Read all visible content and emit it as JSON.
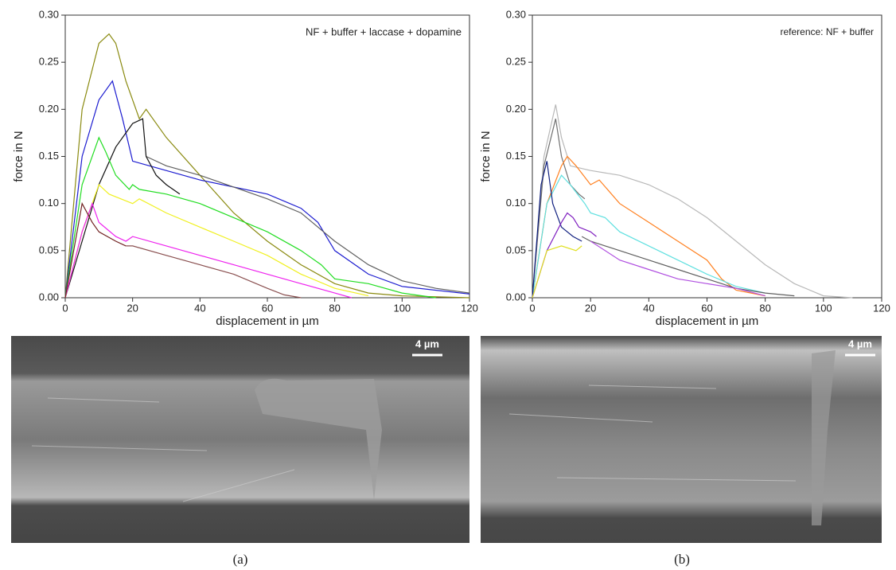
{
  "chart_data": [
    {
      "type": "line",
      "xlabel": "displacement in µm",
      "ylabel": "force in N",
      "annotation": "NF + buffer + laccase + dopamine",
      "xlim": [
        0,
        120
      ],
      "xticks": [
        0,
        20,
        40,
        60,
        80,
        100,
        120
      ],
      "ylim": [
        0,
        0.3
      ],
      "yticks": [
        {
          "value": 0,
          "label": "0.00"
        },
        {
          "value": 0.05,
          "label": "0.05"
        },
        {
          "value": 0.1,
          "label": "0.10"
        },
        {
          "value": 0.15,
          "label": "0.15"
        },
        {
          "value": 0.2,
          "label": "0.20"
        },
        {
          "value": 0.25,
          "label": "0.25"
        },
        {
          "value": 0.3,
          "label": "0.30"
        }
      ],
      "series": [
        {
          "color": "#8a8a10",
          "x": [
            0,
            5,
            10,
            13,
            15,
            18,
            22,
            24,
            30,
            40,
            50,
            60,
            70,
            80,
            90,
            100,
            120
          ],
          "values": [
            0,
            0.2,
            0.27,
            0.28,
            0.27,
            0.23,
            0.19,
            0.2,
            0.17,
            0.13,
            0.09,
            0.06,
            0.035,
            0.015,
            0.005,
            0.002,
            0
          ]
        },
        {
          "color": "#1c1cd0",
          "x": [
            0,
            5,
            10,
            14,
            17,
            20,
            25,
            40,
            60,
            70,
            75,
            80,
            90,
            100,
            120
          ],
          "values": [
            0,
            0.15,
            0.21,
            0.23,
            0.19,
            0.145,
            0.14,
            0.125,
            0.11,
            0.095,
            0.08,
            0.05,
            0.025,
            0.012,
            0.004
          ]
        },
        {
          "color": "#606060",
          "x": [
            24,
            30,
            40,
            60,
            70,
            80,
            90,
            100,
            110,
            120
          ],
          "values": [
            0.15,
            0.14,
            0.13,
            0.105,
            0.09,
            0.06,
            0.035,
            0.018,
            0.01,
            0.005
          ]
        },
        {
          "color": "#111111",
          "x": [
            0,
            5,
            10,
            15,
            20,
            23,
            24,
            27,
            30,
            34
          ],
          "values": [
            0,
            0.06,
            0.12,
            0.16,
            0.185,
            0.19,
            0.15,
            0.13,
            0.12,
            0.11
          ]
        },
        {
          "color": "#22dd22",
          "x": [
            0,
            5,
            10,
            12,
            15,
            19,
            20,
            22,
            30,
            40,
            50,
            60,
            70,
            76,
            80,
            90,
            100,
            110
          ],
          "values": [
            0,
            0.12,
            0.17,
            0.155,
            0.13,
            0.115,
            0.12,
            0.115,
            0.11,
            0.1,
            0.085,
            0.07,
            0.05,
            0.035,
            0.02,
            0.015,
            0.005,
            0
          ]
        },
        {
          "color": "#f0f020",
          "x": [
            0,
            5,
            10,
            13,
            20,
            22,
            30,
            40,
            50,
            60,
            70,
            80,
            90
          ],
          "values": [
            0,
            0.07,
            0.12,
            0.11,
            0.1,
            0.105,
            0.09,
            0.075,
            0.06,
            0.045,
            0.025,
            0.01,
            0.002
          ]
        },
        {
          "color": "#8a5050",
          "x": [
            18,
            20,
            30,
            40,
            50,
            60,
            65,
            70
          ],
          "values": [
            0.055,
            0.055,
            0.045,
            0.035,
            0.025,
            0.01,
            0.003,
            0
          ]
        },
        {
          "color": "#ee22ee",
          "x": [
            0,
            5,
            8,
            10,
            15,
            18,
            20,
            30,
            40,
            50,
            60,
            70,
            80,
            85
          ],
          "values": [
            0,
            0.07,
            0.1,
            0.08,
            0.065,
            0.06,
            0.065,
            0.055,
            0.045,
            0.035,
            0.025,
            0.015,
            0.005,
            0
          ]
        },
        {
          "color": "#702020",
          "x": [
            0,
            5,
            8,
            10,
            15,
            18
          ],
          "values": [
            0,
            0.1,
            0.08,
            0.07,
            0.06,
            0.055
          ]
        }
      ]
    },
    {
      "type": "line",
      "xlabel": "displacement in µm",
      "ylabel": "force in N",
      "annotation": "reference: NF + buffer",
      "xlim": [
        0,
        120
      ],
      "xticks": [
        0,
        20,
        40,
        60,
        80,
        100,
        120
      ],
      "ylim": [
        0,
        0.3
      ],
      "yticks": [
        {
          "value": 0,
          "label": "0.00"
        },
        {
          "value": 0.05,
          "label": "0.05"
        },
        {
          "value": 0.1,
          "label": "0.10"
        },
        {
          "value": 0.15,
          "label": "0.15"
        },
        {
          "value": 0.2,
          "label": "0.20"
        },
        {
          "value": 0.25,
          "label": "0.25"
        },
        {
          "value": 0.3,
          "label": "0.30"
        }
      ],
      "series": [
        {
          "color": "#b8b8b8",
          "x": [
            0,
            4,
            8,
            10,
            13,
            20,
            30,
            40,
            50,
            60,
            70,
            80,
            90,
            100,
            110
          ],
          "values": [
            0,
            0.15,
            0.205,
            0.17,
            0.14,
            0.135,
            0.13,
            0.12,
            0.105,
            0.085,
            0.06,
            0.035,
            0.015,
            0.002,
            0
          ]
        },
        {
          "color": "#707070",
          "x": [
            0,
            4,
            8,
            10,
            13,
            16,
            18
          ],
          "values": [
            0,
            0.14,
            0.19,
            0.15,
            0.12,
            0.11,
            0.105
          ]
        },
        {
          "color": "#ff8020",
          "x": [
            0,
            5,
            10,
            12,
            15,
            20,
            23,
            30,
            40,
            50,
            60,
            65,
            70,
            80
          ],
          "values": [
            0,
            0.1,
            0.14,
            0.15,
            0.14,
            0.12,
            0.125,
            0.1,
            0.08,
            0.06,
            0.04,
            0.02,
            0.008,
            0.002
          ]
        },
        {
          "color": "#60e0e0",
          "x": [
            0,
            5,
            10,
            13,
            18,
            20,
            25,
            30,
            40,
            50,
            60,
            70,
            80
          ],
          "values": [
            0,
            0.1,
            0.13,
            0.12,
            0.1,
            0.09,
            0.085,
            0.07,
            0.055,
            0.04,
            0.025,
            0.012,
            0.005
          ]
        },
        {
          "color": "#606060",
          "x": [
            17,
            20,
            30,
            40,
            50,
            60,
            70,
            80,
            90
          ],
          "values": [
            0.065,
            0.06,
            0.05,
            0.04,
            0.03,
            0.02,
            0.01,
            0.005,
            0.002
          ]
        },
        {
          "color": "#b050e0",
          "x": [
            20,
            30,
            40,
            50,
            60,
            70,
            80
          ],
          "values": [
            0.06,
            0.04,
            0.03,
            0.02,
            0.015,
            0.01,
            0.002
          ]
        },
        {
          "color": "#102080",
          "x": [
            0,
            3,
            5,
            7,
            10,
            14,
            17
          ],
          "values": [
            0,
            0.12,
            0.145,
            0.1,
            0.075,
            0.065,
            0.06
          ]
        },
        {
          "color": "#8020c0",
          "x": [
            0,
            5,
            10,
            12,
            14,
            16,
            20,
            22
          ],
          "values": [
            0,
            0.05,
            0.08,
            0.09,
            0.085,
            0.075,
            0.07,
            0.065
          ]
        },
        {
          "color": "#e0e020",
          "x": [
            0,
            5,
            10,
            15,
            17
          ],
          "values": [
            0,
            0.05,
            0.055,
            0.05,
            0.055
          ]
        }
      ]
    }
  ],
  "figure": {
    "panel_labels": [
      "(a)",
      "(b)"
    ],
    "scale_bars": [
      "4 µm",
      "4 µm"
    ]
  }
}
